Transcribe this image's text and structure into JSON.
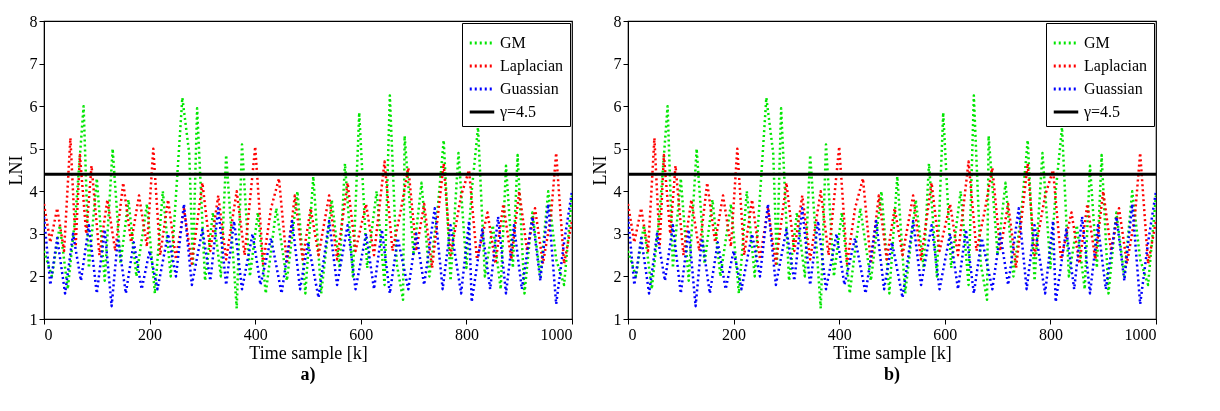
{
  "chart_data": [
    {
      "type": "line",
      "title": "a)",
      "xlabel": "Time sample [k]",
      "ylabel": "LNI",
      "xlim": [
        0,
        1000
      ],
      "xticks": [
        0,
        200,
        400,
        600,
        800,
        1000
      ],
      "ylim": [
        1,
        8
      ],
      "yticks": [
        1,
        2,
        3,
        4,
        5,
        6,
        7,
        8
      ],
      "legend": "top right",
      "grid": false,
      "series": [
        {
          "name": "GM",
          "color": "#00e600",
          "line_style": "dotted",
          "x": [
            0,
            15,
            30,
            45,
            60,
            75,
            85,
            100,
            115,
            130,
            145,
            160,
            175,
            195,
            210,
            225,
            240,
            262,
            275,
            282,
            290,
            305,
            320,
            335,
            345,
            365,
            375,
            390,
            405,
            420,
            440,
            460,
            480,
            495,
            510,
            525,
            545,
            560,
            570,
            585,
            597,
            612,
            630,
            645,
            655,
            668,
            680,
            683,
            700,
            715,
            730,
            745,
            757,
            770,
            785,
            800,
            810,
            822,
            835,
            850,
            865,
            875,
            888,
            897,
            910,
            925,
            940,
            955,
            970,
            985,
            1000
          ],
          "values": [
            2.6,
            2.0,
            3.2,
            1.7,
            3.5,
            6.0,
            2.2,
            4.3,
            1.9,
            5.0,
            2.3,
            3.8,
            2.0,
            3.7,
            1.6,
            4.0,
            2.0,
            6.2,
            4.9,
            2.3,
            5.95,
            1.9,
            3.5,
            2.0,
            4.85,
            1.25,
            5.1,
            2.0,
            3.5,
            1.6,
            3.6,
            1.9,
            4.0,
            1.6,
            4.35,
            1.6,
            3.8,
            2.2,
            4.65,
            2.0,
            5.85,
            2.2,
            4.0,
            1.8,
            6.25,
            2.3,
            1.45,
            5.3,
            2.5,
            4.2,
            2.0,
            3.5,
            5.2,
            1.9,
            4.9,
            2.2,
            4.0,
            5.5,
            2.0,
            3.2,
            1.7,
            4.6,
            2.2,
            4.85,
            1.6,
            3.5,
            2.0,
            4.0,
            2.4,
            1.8,
            3.9
          ]
        },
        {
          "name": "Laplacian",
          "color": "#ff0000",
          "line_style": "dotted",
          "x": [
            0,
            12,
            25,
            38,
            50,
            60,
            68,
            80,
            90,
            105,
            120,
            135,
            150,
            165,
            180,
            195,
            207,
            220,
            235,
            250,
            265,
            280,
            300,
            315,
            330,
            345,
            365,
            380,
            400,
            415,
            430,
            445,
            460,
            475,
            490,
            505,
            520,
            540,
            555,
            575,
            590,
            610,
            625,
            645,
            660,
            675,
            690,
            705,
            720,
            735,
            757,
            770,
            790,
            805,
            820,
            840,
            855,
            870,
            885,
            900,
            915,
            930,
            945,
            960,
            970,
            985,
            1000
          ],
          "values": [
            3.7,
            2.8,
            3.6,
            2.6,
            5.25,
            2.7,
            4.85,
            3.0,
            4.6,
            2.5,
            3.8,
            2.6,
            4.2,
            2.8,
            3.9,
            2.7,
            5.0,
            2.5,
            3.8,
            2.4,
            3.6,
            2.3,
            4.2,
            2.6,
            3.9,
            2.4,
            4.0,
            2.5,
            5.05,
            2.3,
            3.6,
            4.3,
            2.3,
            3.9,
            2.4,
            3.6,
            2.5,
            3.9,
            2.4,
            4.2,
            2.6,
            3.7,
            2.5,
            4.7,
            2.6,
            3.5,
            4.55,
            2.6,
            3.7,
            2.2,
            4.65,
            2.5,
            3.9,
            4.5,
            2.4,
            3.5,
            2.3,
            3.7,
            2.4,
            4.0,
            2.6,
            3.6,
            2.3,
            3.4,
            4.9,
            2.3,
            3.3
          ]
        },
        {
          "name": "Guassian",
          "color": "#0000ff",
          "line_style": "dotted",
          "x": [
            0,
            12,
            25,
            40,
            55,
            70,
            85,
            100,
            115,
            128,
            140,
            155,
            170,
            185,
            200,
            215,
            235,
            250,
            265,
            280,
            300,
            315,
            330,
            345,
            360,
            375,
            395,
            410,
            430,
            450,
            470,
            485,
            500,
            520,
            540,
            555,
            575,
            590,
            610,
            625,
            640,
            655,
            670,
            690,
            705,
            720,
            740,
            755,
            770,
            790,
            805,
            810,
            830,
            845,
            860,
            875,
            890,
            905,
            925,
            940,
            955,
            970,
            985,
            1000
          ],
          "values": [
            3.4,
            1.8,
            2.9,
            1.6,
            3.0,
            1.9,
            3.2,
            1.6,
            3.1,
            1.3,
            2.9,
            1.6,
            2.8,
            1.7,
            2.6,
            1.7,
            3.0,
            2.0,
            3.7,
            1.8,
            3.1,
            1.9,
            3.6,
            1.8,
            3.3,
            1.7,
            3.0,
            1.8,
            2.9,
            1.6,
            3.3,
            1.7,
            2.8,
            1.5,
            3.3,
            1.8,
            3.2,
            1.7,
            3.0,
            1.7,
            3.1,
            1.6,
            2.9,
            1.7,
            3.0,
            1.8,
            3.6,
            1.7,
            3.2,
            1.6,
            3.3,
            1.4,
            3.1,
            1.7,
            3.4,
            1.6,
            3.2,
            1.7,
            3.4,
            1.9,
            3.7,
            1.35,
            2.8,
            4.0
          ]
        },
        {
          "name": "γ=4.5",
          "color": "#000000",
          "line_style": "solid",
          "x": [
            0,
            1000
          ],
          "values": [
            4.4,
            4.4
          ]
        }
      ]
    },
    {
      "type": "line",
      "title": "b)",
      "xlabel": "Time sample [k]",
      "ylabel": "LNI",
      "xlim": [
        0,
        1000
      ],
      "xticks": [
        0,
        200,
        400,
        600,
        800,
        1000
      ],
      "ylim": [
        1,
        8
      ],
      "yticks": [
        1,
        2,
        3,
        4,
        5,
        6,
        7,
        8
      ],
      "legend": "top right",
      "grid": false,
      "series": [
        {
          "name": "GM",
          "color": "#00e600",
          "line_style": "dotted",
          "x": [
            0,
            15,
            30,
            45,
            60,
            75,
            85,
            100,
            115,
            130,
            145,
            160,
            175,
            195,
            210,
            225,
            240,
            262,
            275,
            282,
            290,
            305,
            320,
            335,
            345,
            365,
            375,
            390,
            405,
            420,
            440,
            460,
            480,
            495,
            510,
            525,
            545,
            560,
            570,
            585,
            597,
            612,
            630,
            645,
            655,
            668,
            680,
            683,
            700,
            715,
            730,
            745,
            757,
            770,
            785,
            800,
            810,
            822,
            835,
            850,
            865,
            875,
            888,
            897,
            910,
            925,
            940,
            955,
            970,
            985,
            1000
          ],
          "values": [
            2.6,
            2.0,
            3.2,
            1.7,
            3.5,
            6.0,
            2.2,
            4.3,
            1.9,
            5.0,
            2.3,
            3.8,
            2.0,
            3.7,
            1.6,
            4.0,
            2.0,
            6.2,
            4.9,
            2.3,
            5.95,
            1.9,
            3.5,
            2.0,
            4.85,
            1.25,
            5.1,
            2.0,
            3.5,
            1.6,
            3.6,
            1.9,
            4.0,
            1.6,
            4.35,
            1.6,
            3.8,
            2.2,
            4.65,
            2.0,
            5.85,
            2.2,
            4.0,
            1.8,
            6.25,
            2.3,
            1.45,
            5.3,
            2.5,
            4.2,
            2.0,
            3.5,
            5.2,
            1.9,
            4.9,
            2.2,
            4.0,
            5.5,
            2.0,
            3.2,
            1.7,
            4.6,
            2.2,
            4.85,
            1.6,
            3.5,
            2.0,
            4.0,
            2.4,
            1.8,
            3.9
          ]
        },
        {
          "name": "Laplacian",
          "color": "#ff0000",
          "line_style": "dotted",
          "x": [
            0,
            12,
            25,
            38,
            50,
            60,
            68,
            80,
            90,
            105,
            120,
            135,
            150,
            165,
            180,
            195,
            207,
            220,
            235,
            250,
            265,
            280,
            300,
            315,
            330,
            345,
            365,
            380,
            400,
            415,
            430,
            445,
            460,
            475,
            490,
            505,
            520,
            540,
            555,
            575,
            590,
            610,
            625,
            645,
            660,
            675,
            690,
            705,
            720,
            735,
            757,
            770,
            790,
            805,
            820,
            840,
            855,
            870,
            885,
            900,
            915,
            930,
            945,
            960,
            970,
            985,
            1000
          ],
          "values": [
            3.7,
            2.8,
            3.6,
            2.6,
            5.25,
            2.7,
            4.85,
            3.0,
            4.6,
            2.5,
            3.8,
            2.6,
            4.2,
            2.8,
            3.9,
            2.7,
            5.0,
            2.5,
            3.8,
            2.4,
            3.6,
            2.3,
            4.2,
            2.6,
            3.9,
            2.4,
            4.0,
            2.5,
            5.05,
            2.3,
            3.6,
            4.3,
            2.3,
            3.9,
            2.4,
            3.6,
            2.5,
            3.9,
            2.4,
            4.2,
            2.6,
            3.7,
            2.5,
            4.7,
            2.6,
            3.5,
            4.55,
            2.6,
            3.7,
            2.2,
            4.65,
            2.5,
            3.9,
            4.5,
            2.4,
            3.5,
            2.3,
            3.7,
            2.4,
            4.0,
            2.6,
            3.6,
            2.3,
            3.4,
            4.9,
            2.3,
            3.3
          ]
        },
        {
          "name": "Guassian",
          "color": "#0000ff",
          "line_style": "dotted",
          "x": [
            0,
            12,
            25,
            40,
            55,
            70,
            85,
            100,
            115,
            128,
            140,
            155,
            170,
            185,
            200,
            215,
            235,
            250,
            265,
            280,
            300,
            315,
            330,
            345,
            360,
            375,
            395,
            410,
            430,
            450,
            470,
            485,
            500,
            520,
            540,
            555,
            575,
            590,
            610,
            625,
            640,
            655,
            670,
            690,
            705,
            720,
            740,
            755,
            770,
            790,
            805,
            810,
            830,
            845,
            860,
            875,
            890,
            905,
            925,
            940,
            955,
            970,
            985,
            1000
          ],
          "values": [
            3.4,
            1.8,
            2.9,
            1.6,
            3.0,
            1.9,
            3.2,
            1.6,
            3.1,
            1.3,
            2.9,
            1.6,
            2.8,
            1.7,
            2.6,
            1.7,
            3.0,
            2.0,
            3.7,
            1.8,
            3.1,
            1.9,
            3.6,
            1.8,
            3.3,
            1.7,
            3.0,
            1.8,
            2.9,
            1.6,
            3.3,
            1.7,
            2.8,
            1.5,
            3.3,
            1.8,
            3.2,
            1.7,
            3.0,
            1.7,
            3.1,
            1.6,
            2.9,
            1.7,
            3.0,
            1.8,
            3.6,
            1.7,
            3.2,
            1.6,
            3.3,
            1.4,
            3.1,
            1.7,
            3.4,
            1.6,
            3.2,
            1.7,
            3.4,
            1.9,
            3.7,
            1.35,
            2.8,
            4.0
          ]
        },
        {
          "name": "γ=4.5",
          "color": "#000000",
          "line_style": "solid",
          "x": [
            0,
            1000
          ],
          "values": [
            4.4,
            4.4
          ]
        }
      ]
    }
  ]
}
